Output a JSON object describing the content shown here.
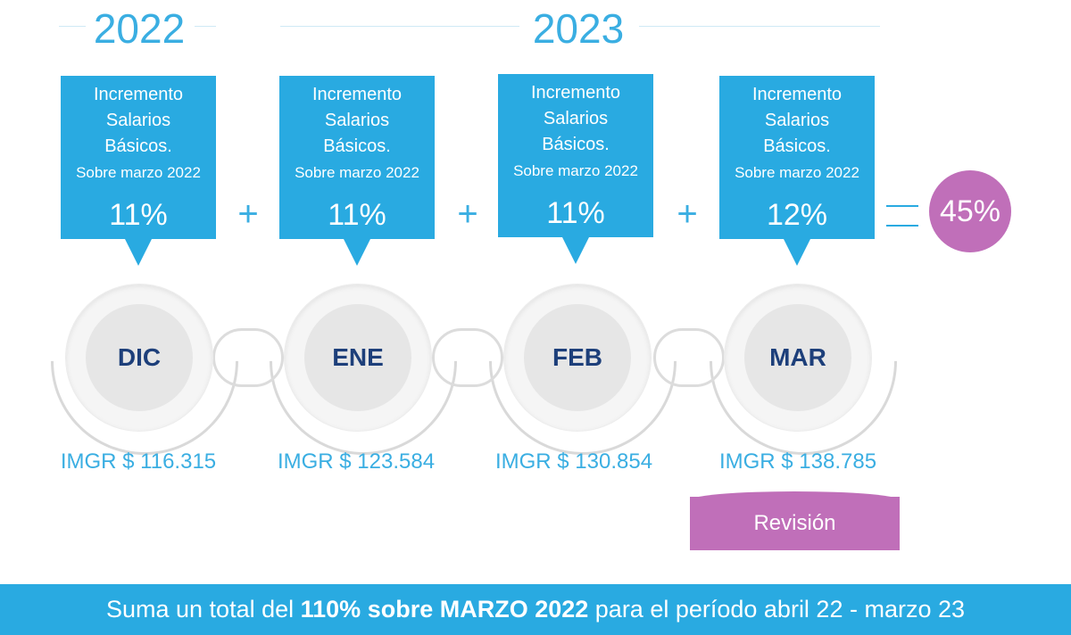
{
  "years": [
    {
      "label": "2022"
    },
    {
      "label": "2023"
    }
  ],
  "boxes": [
    {
      "line1": "Incremento",
      "line2": "Salarios",
      "line3": "Básicos.",
      "sub": "Sobre marzo 2022",
      "pct": "11%"
    },
    {
      "line1": "Incremento",
      "line2": "Salarios",
      "line3": "Básicos.",
      "sub": "Sobre marzo 2022",
      "pct": "11%"
    },
    {
      "line1": "Incremento",
      "line2": "Salarios",
      "line3": "Básicos.",
      "sub": "Sobre marzo 2022",
      "pct": "11%"
    },
    {
      "line1": "Incremento",
      "line2": "Salarios",
      "line3": "Básicos.",
      "sub": "Sobre marzo 2022",
      "pct": "12%"
    }
  ],
  "operators": {
    "plus": "+"
  },
  "result": "45%",
  "months": [
    "DIC",
    "ENE",
    "FEB",
    "MAR"
  ],
  "imgr": [
    "IMGR $ 116.315",
    "IMGR $ 123.584",
    "IMGR $ 130.854",
    "IMGR $ 138.785"
  ],
  "revision": "Revisión",
  "banner": {
    "pre": "Suma un total del ",
    "bold": "110% sobre MARZO 2022",
    "post": " para el período abril 22 - marzo 23"
  },
  "colors": {
    "accent": "#29aae1",
    "highlight": "#c06fb9",
    "month_text": "#1d3f7a"
  }
}
